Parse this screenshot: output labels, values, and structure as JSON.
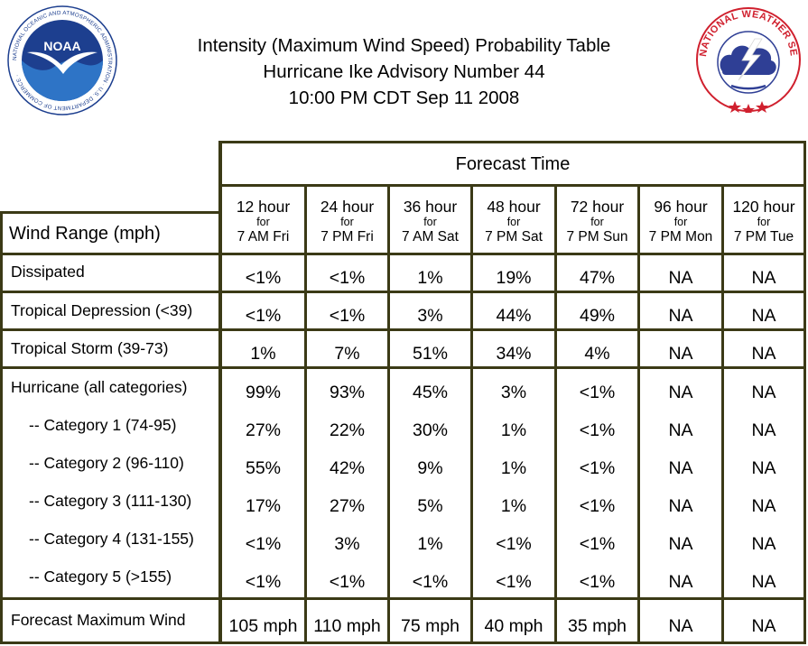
{
  "header": {
    "title_line1": "Intensity (Maximum Wind Speed) Probability Table",
    "title_line2": "Hurricane Ike Advisory Number 44",
    "title_line3": "10:00 PM CDT Sep 11 2008"
  },
  "logos": {
    "noaa_text": "NOAA",
    "noaa_ring_text": "NATIONAL OCEANIC AND ATMOSPHERIC ADMINISTRATION · U.S. DEPARTMENT OF COMMERCE",
    "nws_ring_text": "NATIONAL WEATHER SERVICE"
  },
  "table": {
    "forecast_time_label": "Forecast Time",
    "wind_range_label": "Wind Range (mph)",
    "columns": [
      {
        "hours": "12 hour",
        "for": "for",
        "when": "7 AM Fri"
      },
      {
        "hours": "24 hour",
        "for": "for",
        "when": "7 PM Fri"
      },
      {
        "hours": "36 hour",
        "for": "for",
        "when": "7 AM Sat"
      },
      {
        "hours": "48 hour",
        "for": "for",
        "when": "7 PM Sat"
      },
      {
        "hours": "72 hour",
        "for": "for",
        "when": "7 PM Sun"
      },
      {
        "hours": "96 hour",
        "for": "for",
        "when": "7 PM Mon"
      },
      {
        "hours": "120 hour",
        "for": "for",
        "when": "7 PM Tue"
      }
    ],
    "rows": [
      {
        "label": "Dissipated",
        "values": [
          "<1%",
          "<1%",
          "1%",
          "19%",
          "47%",
          "NA",
          "NA"
        ]
      },
      {
        "label": "Tropical Depression (<39)",
        "values": [
          "<1%",
          "<1%",
          "3%",
          "44%",
          "49%",
          "NA",
          "NA"
        ]
      },
      {
        "label": "Tropical Storm (39-73)",
        "values": [
          "1%",
          "7%",
          "51%",
          "34%",
          "4%",
          "NA",
          "NA"
        ]
      },
      {
        "label": "Hurricane (all categories)",
        "values": [
          "99%",
          "93%",
          "45%",
          "3%",
          "<1%",
          "NA",
          "NA"
        ]
      },
      {
        "label": "-- Category 1 (74-95)",
        "values": [
          "27%",
          "22%",
          "30%",
          "1%",
          "<1%",
          "NA",
          "NA"
        ]
      },
      {
        "label": "-- Category 2 (96-110)",
        "values": [
          "55%",
          "42%",
          "9%",
          "1%",
          "<1%",
          "NA",
          "NA"
        ]
      },
      {
        "label": "-- Category 3 (111-130)",
        "values": [
          "17%",
          "27%",
          "5%",
          "1%",
          "<1%",
          "NA",
          "NA"
        ]
      },
      {
        "label": "-- Category 4 (131-155)",
        "values": [
          "<1%",
          "3%",
          "1%",
          "<1%",
          "<1%",
          "NA",
          "NA"
        ]
      },
      {
        "label": "-- Category 5 (>155)",
        "values": [
          "<1%",
          "<1%",
          "<1%",
          "<1%",
          "<1%",
          "NA",
          "NA"
        ]
      },
      {
        "label": "Forecast Maximum Wind",
        "values": [
          "105 mph",
          "110 mph",
          "75 mph",
          "40 mph",
          "35 mph",
          "NA",
          "NA"
        ]
      }
    ]
  },
  "colors": {
    "frame": "#3b3a16",
    "noaa_blue": "#1d3f8f",
    "nws_red": "#d0202e",
    "nws_blue": "#2f3f95"
  }
}
